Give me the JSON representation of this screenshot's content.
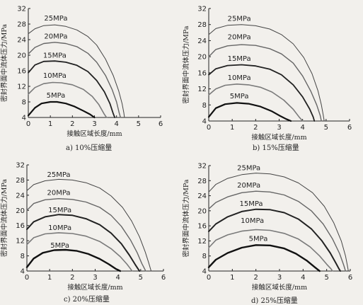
{
  "chart_data": [
    {
      "type": "line",
      "caption": "a) 10%压缩量",
      "xlabel": "接触区域长度/mm",
      "ylabel": "密封界面中流体压力/MPa",
      "xlim": [
        0,
        6
      ],
      "ylim": [
        4,
        32
      ],
      "xticks": [
        "0",
        "1",
        "2",
        "3",
        "4",
        "5",
        "6"
      ],
      "yticks": [
        "4",
        "8",
        "12",
        "16",
        "20",
        "24",
        "28",
        "32"
      ],
      "series": [
        {
          "name": "5MPa",
          "color": "#111111",
          "stroke": 2.2,
          "x": [
            0,
            0.3,
            0.6,
            1.0,
            1.3,
            1.7,
            2.1,
            2.5,
            2.8,
            3.0
          ],
          "y": [
            4.5,
            6.5,
            7.6,
            8.0,
            8.0,
            7.6,
            6.8,
            5.7,
            4.8,
            4.0
          ]
        },
        {
          "name": "10MPa",
          "color": "#7a7a7a",
          "stroke": 1.6,
          "x": [
            0,
            0.3,
            0.7,
            1.1,
            1.5,
            2.0,
            2.5,
            2.9,
            3.2,
            3.45,
            3.55
          ],
          "y": [
            10.0,
            11.7,
            12.7,
            13.0,
            12.9,
            12.4,
            11.2,
            9.4,
            7.3,
            4.8,
            4.0
          ]
        },
        {
          "name": "15MPa",
          "color": "#222222",
          "stroke": 1.8,
          "x": [
            0,
            0.3,
            0.7,
            1.2,
            1.7,
            2.2,
            2.7,
            3.1,
            3.45,
            3.7,
            3.85,
            3.92
          ],
          "y": [
            15.5,
            17.5,
            18.4,
            18.5,
            18.2,
            17.4,
            15.8,
            13.5,
            10.6,
            7.6,
            5.0,
            4.0
          ]
        },
        {
          "name": "20MPa",
          "color": "#666666",
          "stroke": 1.4,
          "x": [
            0,
            0.3,
            0.7,
            1.2,
            1.7,
            2.2,
            2.7,
            3.1,
            3.5,
            3.8,
            4.0,
            4.12,
            4.18
          ],
          "y": [
            20.3,
            22.0,
            23.0,
            23.3,
            23.0,
            22.2,
            20.5,
            18.2,
            14.8,
            11.2,
            8.0,
            5.2,
            4.0
          ]
        },
        {
          "name": "25MPa",
          "color": "#444444",
          "stroke": 1.0,
          "x": [
            0,
            0.3,
            0.7,
            1.2,
            1.7,
            2.2,
            2.7,
            3.1,
            3.5,
            3.85,
            4.1,
            4.25,
            4.33,
            4.36
          ],
          "y": [
            25.5,
            26.8,
            27.6,
            27.8,
            27.4,
            26.5,
            24.8,
            22.6,
            19.0,
            14.8,
            10.8,
            7.6,
            5.2,
            4.0
          ]
        }
      ],
      "labels": [
        {
          "text": "25MPa",
          "x": 1.25,
          "y": 28.9
        },
        {
          "text": "20MPa",
          "x": 1.25,
          "y": 24.3
        },
        {
          "text": "15MPa",
          "x": 1.2,
          "y": 19.4
        },
        {
          "text": "10MPa",
          "x": 1.2,
          "y": 14.2
        },
        {
          "text": "5MPa",
          "x": 1.25,
          "y": 9.1
        }
      ]
    },
    {
      "type": "line",
      "caption": "b) 15%压缩量",
      "xlabel": "接触区域长度/mm",
      "ylabel": "密封界面中流体压力/MPa",
      "xlim": [
        0,
        6
      ],
      "ylim": [
        4,
        32
      ],
      "xticks": [
        "0",
        "1",
        "2",
        "3",
        "4",
        "5",
        "6"
      ],
      "yticks": [
        "4",
        "8",
        "12",
        "16",
        "20",
        "24",
        "28",
        "32"
      ],
      "series": [
        {
          "name": "5MPa",
          "color": "#111111",
          "stroke": 2.2,
          "x": [
            0,
            0.3,
            0.7,
            1.2,
            1.7,
            2.2,
            2.7,
            3.0,
            3.3,
            3.5
          ],
          "y": [
            5.0,
            7.2,
            8.2,
            8.5,
            8.3,
            7.6,
            6.4,
            5.4,
            4.5,
            4.0
          ]
        },
        {
          "name": "10MPa",
          "color": "#7a7a7a",
          "stroke": 1.6,
          "x": [
            0,
            0.3,
            0.7,
            1.2,
            1.7,
            2.2,
            2.7,
            3.2,
            3.6,
            3.85,
            4.0
          ],
          "y": [
            10.5,
            12.0,
            12.9,
            13.2,
            13.0,
            12.4,
            11.2,
            9.2,
            6.9,
            5.0,
            4.0
          ]
        },
        {
          "name": "15MPa",
          "color": "#222222",
          "stroke": 1.8,
          "x": [
            0,
            0.3,
            0.8,
            1.4,
            2.0,
            2.6,
            3.1,
            3.6,
            4.0,
            4.3,
            4.45,
            4.5
          ],
          "y": [
            15.5,
            17.0,
            17.8,
            18.0,
            17.7,
            16.9,
            15.5,
            13.0,
            10.0,
            7.0,
            5.0,
            4.0
          ]
        },
        {
          "name": "20MPa",
          "color": "#666666",
          "stroke": 1.4,
          "x": [
            0,
            0.3,
            0.8,
            1.4,
            2.0,
            2.6,
            3.1,
            3.6,
            4.0,
            4.35,
            4.6,
            4.75,
            4.8
          ],
          "y": [
            20.0,
            21.8,
            22.7,
            23.0,
            22.8,
            22.0,
            20.7,
            18.4,
            15.2,
            11.4,
            8.0,
            5.4,
            4.0
          ]
        },
        {
          "name": "25MPa",
          "color": "#444444",
          "stroke": 1.0,
          "x": [
            0,
            0.3,
            0.8,
            1.4,
            2.0,
            2.6,
            3.1,
            3.6,
            4.05,
            4.4,
            4.65,
            4.8,
            4.88,
            4.92
          ],
          "y": [
            25.5,
            27.0,
            27.8,
            28.0,
            27.7,
            26.9,
            25.5,
            23.2,
            19.8,
            15.8,
            11.6,
            8.0,
            5.4,
            4.0
          ]
        }
      ],
      "labels": [
        {
          "text": "25MPa",
          "x": 1.3,
          "y": 28.9
        },
        {
          "text": "20MPa",
          "x": 1.3,
          "y": 24.3
        },
        {
          "text": "15MPa",
          "x": 1.3,
          "y": 19.0
        },
        {
          "text": "10MPa",
          "x": 1.3,
          "y": 14.2
        },
        {
          "text": "5MPa",
          "x": 1.3,
          "y": 9.6
        }
      ]
    },
    {
      "type": "line",
      "caption": "c) 20%压缩量",
      "xlabel": "接触区域长度/mm",
      "ylabel": "密封界面中流体压力/MPa",
      "xlim": [
        0,
        6
      ],
      "ylim": [
        4,
        32
      ],
      "xticks": [
        "0",
        "1",
        "2",
        "3",
        "4",
        "5",
        "6"
      ],
      "yticks": [
        "4",
        "8",
        "12",
        "16",
        "20",
        "24",
        "28",
        "32"
      ],
      "series": [
        {
          "name": "5MPa",
          "color": "#111111",
          "stroke": 2.4,
          "x": [
            0,
            0.3,
            0.7,
            1.2,
            1.7,
            2.2,
            2.7,
            3.2,
            3.6,
            3.9,
            4.1
          ],
          "y": [
            5.0,
            7.3,
            8.8,
            9.5,
            9.6,
            9.3,
            8.5,
            7.2,
            5.8,
            4.6,
            4.0
          ]
        },
        {
          "name": "10MPa",
          "color": "#7a7a7a",
          "stroke": 1.6,
          "x": [
            0,
            0.3,
            0.8,
            1.4,
            2.0,
            2.6,
            3.2,
            3.7,
            4.1,
            4.4,
            4.55,
            4.62
          ],
          "y": [
            11.0,
            12.8,
            13.8,
            14.1,
            13.9,
            13.2,
            11.8,
            9.9,
            7.8,
            5.8,
            4.6,
            4.0
          ]
        },
        {
          "name": "15MPa",
          "color": "#222222",
          "stroke": 2.0,
          "x": [
            0,
            0.3,
            0.8,
            1.4,
            2.0,
            2.6,
            3.2,
            3.7,
            4.15,
            4.5,
            4.75,
            4.88,
            4.95
          ],
          "y": [
            15.0,
            17.0,
            18.3,
            18.9,
            18.7,
            17.8,
            16.2,
            14.0,
            11.2,
            8.2,
            5.8,
            4.6,
            4.0
          ]
        },
        {
          "name": "20MPa",
          "color": "#666666",
          "stroke": 1.4,
          "x": [
            0,
            0.3,
            0.8,
            1.4,
            2.0,
            2.6,
            3.2,
            3.7,
            4.15,
            4.55,
            4.85,
            5.05,
            5.17,
            5.22
          ],
          "y": [
            20.0,
            21.8,
            22.8,
            23.1,
            22.9,
            22.2,
            20.8,
            18.7,
            15.8,
            12.2,
            8.8,
            6.0,
            4.6,
            4.0
          ]
        },
        {
          "name": "25MPa",
          "color": "#444444",
          "stroke": 1.0,
          "x": [
            0,
            0.3,
            0.8,
            1.4,
            2.0,
            2.6,
            3.2,
            3.7,
            4.2,
            4.6,
            4.95,
            5.2,
            5.35,
            5.42,
            5.46
          ],
          "y": [
            25.2,
            26.8,
            27.8,
            28.2,
            28.0,
            27.3,
            25.9,
            23.8,
            20.8,
            17.2,
            13.0,
            9.0,
            6.2,
            4.8,
            4.0
          ]
        }
      ],
      "labels": [
        {
          "text": "25MPa",
          "x": 1.4,
          "y": 28.8
        },
        {
          "text": "20MPa",
          "x": 1.4,
          "y": 24.1
        },
        {
          "text": "15MPa",
          "x": 1.45,
          "y": 19.5
        },
        {
          "text": "10MPa",
          "x": 1.45,
          "y": 14.8
        },
        {
          "text": "5MPa",
          "x": 1.45,
          "y": 10.2
        }
      ]
    },
    {
      "type": "line",
      "caption": "d) 25%压缩量",
      "xlabel": "接触区域长度/mm",
      "ylabel": "密封界面中流体压力/MPa",
      "xlim": [
        0,
        6
      ],
      "ylim": [
        4,
        32
      ],
      "xticks": [
        "0",
        "1",
        "2",
        "3",
        "4",
        "5",
        "6"
      ],
      "yticks": [
        "4",
        "8",
        "12",
        "16",
        "20",
        "24",
        "28",
        "32"
      ],
      "series": [
        {
          "name": "5MPa",
          "color": "#111111",
          "stroke": 2.4,
          "x": [
            0,
            0.3,
            0.8,
            1.4,
            2.0,
            2.6,
            3.2,
            3.7,
            4.15,
            4.5,
            4.7
          ],
          "y": [
            5.0,
            7.0,
            8.8,
            10.2,
            10.9,
            10.8,
            10.0,
            8.6,
            6.8,
            5.0,
            4.0
          ]
        },
        {
          "name": "10MPa",
          "color": "#7a7a7a",
          "stroke": 1.6,
          "x": [
            0,
            0.3,
            0.8,
            1.4,
            2.0,
            2.6,
            3.2,
            3.8,
            4.3,
            4.7,
            5.0,
            5.18,
            5.25
          ],
          "y": [
            10.2,
            12.2,
            13.6,
            14.6,
            15.0,
            14.8,
            14.0,
            12.5,
            10.4,
            8.0,
            5.8,
            4.6,
            4.0
          ]
        },
        {
          "name": "15MPa",
          "color": "#222222",
          "stroke": 2.0,
          "x": [
            0,
            0.3,
            0.8,
            1.4,
            2.0,
            2.6,
            3.2,
            3.8,
            4.35,
            4.8,
            5.15,
            5.4,
            5.52,
            5.58
          ],
          "y": [
            14.5,
            16.5,
            18.4,
            19.8,
            20.4,
            20.3,
            19.5,
            17.8,
            15.2,
            12.0,
            8.8,
            6.0,
            4.6,
            4.0
          ]
        },
        {
          "name": "20MPa",
          "color": "#666666",
          "stroke": 1.4,
          "x": [
            0,
            0.3,
            0.8,
            1.4,
            2.0,
            2.6,
            3.2,
            3.8,
            4.35,
            4.85,
            5.25,
            5.55,
            5.72,
            5.8
          ],
          "y": [
            20.5,
            22.2,
            23.7,
            24.8,
            25.2,
            25.0,
            24.2,
            22.5,
            20.0,
            16.5,
            12.5,
            8.6,
            5.6,
            4.0
          ]
        },
        {
          "name": "25MPa",
          "color": "#444444",
          "stroke": 1.0,
          "x": [
            0,
            0.3,
            0.8,
            1.4,
            2.0,
            2.6,
            3.2,
            3.8,
            4.4,
            4.9,
            5.3,
            5.62,
            5.8,
            5.88,
            5.92
          ],
          "y": [
            25.0,
            27.0,
            28.6,
            29.6,
            30.0,
            29.8,
            29.0,
            27.4,
            24.8,
            21.2,
            16.8,
            12.0,
            8.0,
            5.4,
            4.0
          ]
        }
      ],
      "labels": [
        {
          "text": "25MPa",
          "x": 1.7,
          "y": 30.8
        },
        {
          "text": "20MPa",
          "x": 1.7,
          "y": 26.2
        },
        {
          "text": "15MPa",
          "x": 1.8,
          "y": 21.3
        },
        {
          "text": "10MPa",
          "x": 1.85,
          "y": 16.8
        },
        {
          "text": "5MPa",
          "x": 2.1,
          "y": 12.0
        }
      ]
    }
  ]
}
